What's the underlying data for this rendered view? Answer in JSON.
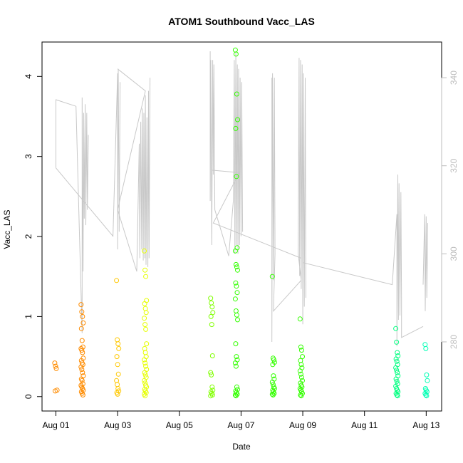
{
  "chart_data": {
    "type": "scatter",
    "title": "ATOM1 Southbound Vacc_LAS",
    "xlabel": "Date",
    "ylabel": "Vacc_LAS",
    "x_tick_labels": [
      "Aug 01",
      "Aug 03",
      "Aug 05",
      "Aug 07",
      "Aug 09",
      "Aug 11",
      "Aug 13"
    ],
    "x_tick_days": [
      1,
      3,
      5,
      7,
      9,
      11,
      13
    ],
    "xlim": [
      0.55,
      13.5
    ],
    "ylim": [
      -0.18,
      4.43
    ],
    "y_ticks": [
      0,
      1,
      2,
      3,
      4
    ],
    "y2_ticks": [
      280,
      300,
      320,
      340
    ],
    "y2_lim": [
      264.3,
      348.1
    ],
    "grid": false,
    "legend": "none",
    "point_colors": {
      "orange": "#ff8c00",
      "amber": "#ffc800",
      "yellow": "#e6ff00",
      "green": "#80ff00",
      "lime": "#33ff00",
      "mint": "#00ff80",
      "cyan": "#00ffb4"
    },
    "line_color": "#c8c8c8",
    "series": [
      {
        "color": "#ff8c00",
        "x": [
          1.0,
          1.0,
          1.0,
          1.0,
          1.0
        ],
        "y": [
          0.42,
          0.38,
          0.35,
          0.08,
          0.07
        ]
      },
      {
        "color": "#ff8c00",
        "x": [
          1.85,
          1.85,
          1.85,
          1.85,
          1.85,
          1.85,
          1.85,
          1.85,
          1.85,
          1.85,
          1.85,
          1.85,
          1.85,
          1.85,
          1.85,
          1.85,
          1.85,
          1.85,
          1.85,
          1.85,
          1.85,
          1.85,
          1.85,
          1.85,
          1.85,
          1.85,
          1.85,
          1.85
        ],
        "y": [
          1.15,
          1.06,
          1.0,
          0.92,
          0.85,
          0.7,
          0.62,
          0.6,
          0.58,
          0.55,
          0.48,
          0.45,
          0.42,
          0.4,
          0.37,
          0.34,
          0.3,
          0.26,
          0.22,
          0.2,
          0.16,
          0.14,
          0.12,
          0.1,
          0.08,
          0.06,
          0.04,
          0.02
        ]
      },
      {
        "color": "#ffc800",
        "x": [
          3.0,
          3.0,
          3.0,
          3.0,
          3.0,
          3.0,
          3.0,
          3.0,
          3.0,
          3.0,
          3.0,
          3.0,
          3.0
        ],
        "y": [
          1.45,
          0.71,
          0.66,
          0.6,
          0.5,
          0.4,
          0.28,
          0.2,
          0.15,
          0.1,
          0.07,
          0.05,
          0.03
        ]
      },
      {
        "color": "#e6ff00",
        "x": [
          3.9,
          3.9,
          3.9,
          3.9,
          3.9,
          3.9,
          3.9,
          3.9,
          3.9,
          3.9,
          3.9,
          3.9,
          3.9,
          3.9,
          3.9,
          3.9,
          3.9,
          3.9,
          3.9,
          3.9,
          3.9,
          3.9,
          3.9,
          3.9,
          3.9,
          3.9,
          3.9,
          3.9,
          3.9,
          3.9
        ],
        "y": [
          1.82,
          1.58,
          1.5,
          1.2,
          1.16,
          1.1,
          1.05,
          0.98,
          0.9,
          0.84,
          0.66,
          0.6,
          0.55,
          0.5,
          0.46,
          0.42,
          0.38,
          0.34,
          0.3,
          0.27,
          0.24,
          0.2,
          0.17,
          0.14,
          0.12,
          0.09,
          0.07,
          0.05,
          0.03,
          0.01
        ]
      },
      {
        "color": "#80ff00",
        "x": [
          6.05,
          6.05,
          6.05,
          6.05,
          6.05,
          6.05,
          6.05,
          6.05,
          6.05,
          6.05,
          6.05,
          6.05,
          6.05,
          6.05,
          6.05
        ],
        "y": [
          1.23,
          1.17,
          1.12,
          1.05,
          1.0,
          0.9,
          0.51,
          0.3,
          0.27,
          0.12,
          0.08,
          0.06,
          0.04,
          0.02,
          0.01
        ]
      },
      {
        "color": "#33ff00",
        "x": [
          6.85,
          6.85,
          6.85,
          6.85,
          6.85,
          6.85,
          6.85,
          6.85,
          6.85,
          6.85,
          6.85,
          6.85,
          6.85,
          6.85,
          6.85,
          6.85,
          6.85,
          6.85,
          6.85,
          6.85,
          6.85,
          6.85,
          6.85,
          6.85,
          6.85,
          6.85,
          6.85,
          6.85,
          6.85,
          6.85
        ],
        "y": [
          4.33,
          4.28,
          3.78,
          3.46,
          3.35,
          2.75,
          1.86,
          1.82,
          1.65,
          1.62,
          1.58,
          1.42,
          1.38,
          1.3,
          1.22,
          1.07,
          1.02,
          0.96,
          0.66,
          0.5,
          0.46,
          0.42,
          0.38,
          0.12,
          0.09,
          0.07,
          0.05,
          0.03,
          0.02,
          0.01
        ]
      },
      {
        "color": "#33ff00",
        "x": [
          8.05,
          8.05,
          8.05,
          8.05,
          8.05,
          8.05,
          8.05,
          8.05,
          8.05,
          8.05,
          8.05,
          8.05,
          8.05,
          8.05,
          8.05,
          8.05
        ],
        "y": [
          1.5,
          0.48,
          0.46,
          0.43,
          0.4,
          0.26,
          0.22,
          0.18,
          0.15,
          0.12,
          0.1,
          0.08,
          0.06,
          0.04,
          0.03,
          0.02
        ]
      },
      {
        "color": "#33ff00",
        "x": [
          8.95,
          8.95,
          8.95,
          8.95,
          8.95,
          8.95,
          8.95,
          8.95,
          8.95,
          8.95,
          8.95,
          8.95,
          8.95,
          8.95,
          8.95,
          8.95,
          8.95,
          8.95,
          8.95,
          8.95
        ],
        "y": [
          0.97,
          0.62,
          0.58,
          0.5,
          0.45,
          0.4,
          0.36,
          0.32,
          0.28,
          0.24,
          0.2,
          0.17,
          0.14,
          0.12,
          0.1,
          0.08,
          0.06,
          0.04,
          0.02,
          0.01
        ]
      },
      {
        "color": "#00ff80",
        "x": [
          12.05,
          12.05,
          12.05,
          12.05,
          12.05,
          12.05,
          12.05,
          12.05,
          12.05,
          12.05,
          12.05,
          12.05,
          12.05,
          12.05,
          12.05,
          12.05,
          12.05,
          12.05,
          12.05,
          12.05,
          12.05
        ],
        "y": [
          0.85,
          0.68,
          0.55,
          0.51,
          0.47,
          0.44,
          0.4,
          0.36,
          0.33,
          0.3,
          0.26,
          0.22,
          0.19,
          0.16,
          0.13,
          0.1,
          0.08,
          0.06,
          0.04,
          0.02,
          0.01
        ]
      },
      {
        "color": "#00ffb4",
        "x": [
          13.0,
          13.0,
          13.0,
          13.0,
          13.0,
          13.0,
          13.0,
          13.0,
          13.0,
          13.0
        ],
        "y": [
          0.65,
          0.6,
          0.27,
          0.2,
          0.1,
          0.08,
          0.06,
          0.04,
          0.02,
          0.01
        ]
      }
    ],
    "line_segments": [
      {
        "x": [
          1.0,
          1.0,
          1.0,
          1.65
        ],
        "y2": [
          335.0,
          319.5,
          335.0,
          333.5
        ]
      },
      {
        "x": [
          1.65,
          1.85,
          1.85,
          1.88,
          1.9,
          1.92,
          1.95,
          1.97,
          2.0,
          2.02,
          2.05
        ],
        "y2": [
          333.5,
          282.0,
          335.5,
          296.0,
          332.0,
          308.0,
          334.0,
          306.5,
          332.0,
          310.0,
          327.0
        ]
      },
      {
        "x": [
          1.0,
          2.85,
          3.0,
          3.0,
          3.02,
          3.05,
          3.08
        ],
        "y2": [
          319.5,
          304.0,
          341.0,
          301.0,
          342.0,
          305.0,
          339.0
        ]
      },
      {
        "x": [
          3.0,
          3.9,
          3.0,
          3.62,
          3.7,
          3.72,
          3.75,
          3.78,
          3.8,
          3.83,
          3.85,
          3.88,
          3.9,
          3.92,
          3.95,
          3.98,
          4.0,
          4.02,
          4.05
        ],
        "y2": [
          342.0,
          337.0,
          310.0,
          296.0,
          325.0,
          299.0,
          330.0,
          301.0,
          333.0,
          298.5,
          332.0,
          299.0,
          336.0,
          297.5,
          331.0,
          297.0,
          337.0,
          299.0,
          340.0
        ]
      },
      {
        "x": [
          6.0,
          6.0,
          6.02,
          6.05,
          6.08,
          6.1,
          6.12,
          6.15,
          6.6,
          6.75,
          6.78,
          6.8,
          6.83,
          6.85,
          6.88,
          6.9,
          6.92,
          6.95,
          6.97,
          7.0,
          7.02,
          7.05
        ],
        "y2": [
          346.0,
          312.0,
          344.0,
          302.0,
          344.0,
          318.0,
          343.0,
          310.0,
          299.5,
          312.0,
          344.0,
          300.0,
          346.0,
          302.0,
          343.0,
          300.0,
          342.0,
          302.0,
          340.0,
          304.0,
          339.0,
          305.0
        ]
      },
      {
        "x": [
          6.05,
          6.85,
          6.95,
          6.1,
          8.95
        ],
        "y2": [
          319.0,
          318.5,
          318.5,
          307.0,
          299.0
        ]
      },
      {
        "x": [
          8.0,
          8.0,
          8.02,
          8.05,
          8.08,
          8.1,
          8.05,
          8.95,
          8.85,
          8.88,
          8.9,
          8.93,
          8.95,
          8.98,
          9.0,
          9.02,
          9.05,
          9.08,
          9.1
        ],
        "y2": [
          340.0,
          280.0,
          341.0,
          294.0,
          340.0,
          300.0,
          287.0,
          294.0,
          300.0,
          344.5,
          295.0,
          344.0,
          292.0,
          343.0,
          284.0,
          341.0,
          288.0,
          340.0,
          290.0
        ]
      },
      {
        "x": [
          9.0,
          11.9,
          12.05,
          12.05,
          12.08,
          12.1,
          12.12,
          12.15,
          12.18,
          12.2,
          12.2,
          12.9
        ],
        "y2": [
          298.0,
          293.0,
          309.0,
          279.0,
          318.0,
          285.0,
          316.0,
          286.0,
          314.0,
          290.0,
          281.0,
          283.5
        ]
      },
      {
        "x": [
          12.9,
          12.95,
          12.97,
          13.0,
          13.02,
          13.05
        ],
        "y2": [
          293.0,
          309.0,
          287.0,
          308.5,
          290.0,
          307.0
        ]
      }
    ]
  }
}
